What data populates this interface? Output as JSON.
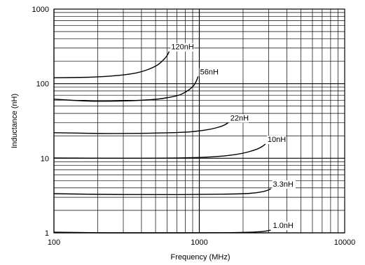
{
  "chart_data": {
    "type": "line",
    "xlabel": "Frequency (MHz)",
    "ylabel": "Inductance (nH)",
    "x_scale": "log",
    "y_scale": "log",
    "xlim": [
      100,
      10000
    ],
    "ylim": [
      1,
      1000
    ],
    "grid": true,
    "x_ticks": [
      {
        "value": 100,
        "label": "100"
      },
      {
        "value": 1000,
        "label": "1000"
      },
      {
        "value": 10000,
        "label": "10000"
      }
    ],
    "y_ticks": [
      {
        "value": 1,
        "label": "1"
      },
      {
        "value": 10,
        "label": "10"
      },
      {
        "value": 100,
        "label": "100"
      },
      {
        "value": 1000,
        "label": "1000"
      }
    ],
    "series": [
      {
        "name": "120nH",
        "x": [
          100,
          150,
          200,
          300,
          400,
          500,
          550,
          600,
          620
        ],
        "y": [
          120,
          121,
          123,
          130,
          143,
          170,
          195,
          235,
          270
        ]
      },
      {
        "name": "56nH",
        "x": [
          100,
          150,
          200,
          300,
          500,
          700,
          800,
          900,
          950,
          980
        ],
        "y": [
          62,
          59,
          58,
          58.5,
          61,
          68,
          76,
          90,
          105,
          125
        ]
      },
      {
        "name": "22nH",
        "x": [
          100,
          200,
          300,
          500,
          800,
          1000,
          1200,
          1400,
          1500,
          1580
        ],
        "y": [
          22,
          21.5,
          21.5,
          21.7,
          22.3,
          23.2,
          24.5,
          26.5,
          28,
          30
        ]
      },
      {
        "name": "10nH",
        "x": [
          100,
          200,
          500,
          1000,
          1500,
          2000,
          2500,
          2700,
          2850
        ],
        "y": [
          10.1,
          10,
          10,
          10.2,
          10.7,
          11.6,
          13.2,
          14.3,
          15.5
        ]
      },
      {
        "name": "3.3nH",
        "x": [
          100,
          200,
          500,
          1000,
          2000,
          2500,
          2900,
          3100
        ],
        "y": [
          3.35,
          3.28,
          3.25,
          3.27,
          3.33,
          3.45,
          3.65,
          3.9
        ]
      },
      {
        "name": "1.0nH",
        "x": [
          100,
          200,
          500,
          1000,
          2000,
          2800,
          3100
        ],
        "y": [
          1.02,
          1.0,
          1.0,
          1.0,
          1.01,
          1.04,
          1.09
        ]
      }
    ]
  }
}
